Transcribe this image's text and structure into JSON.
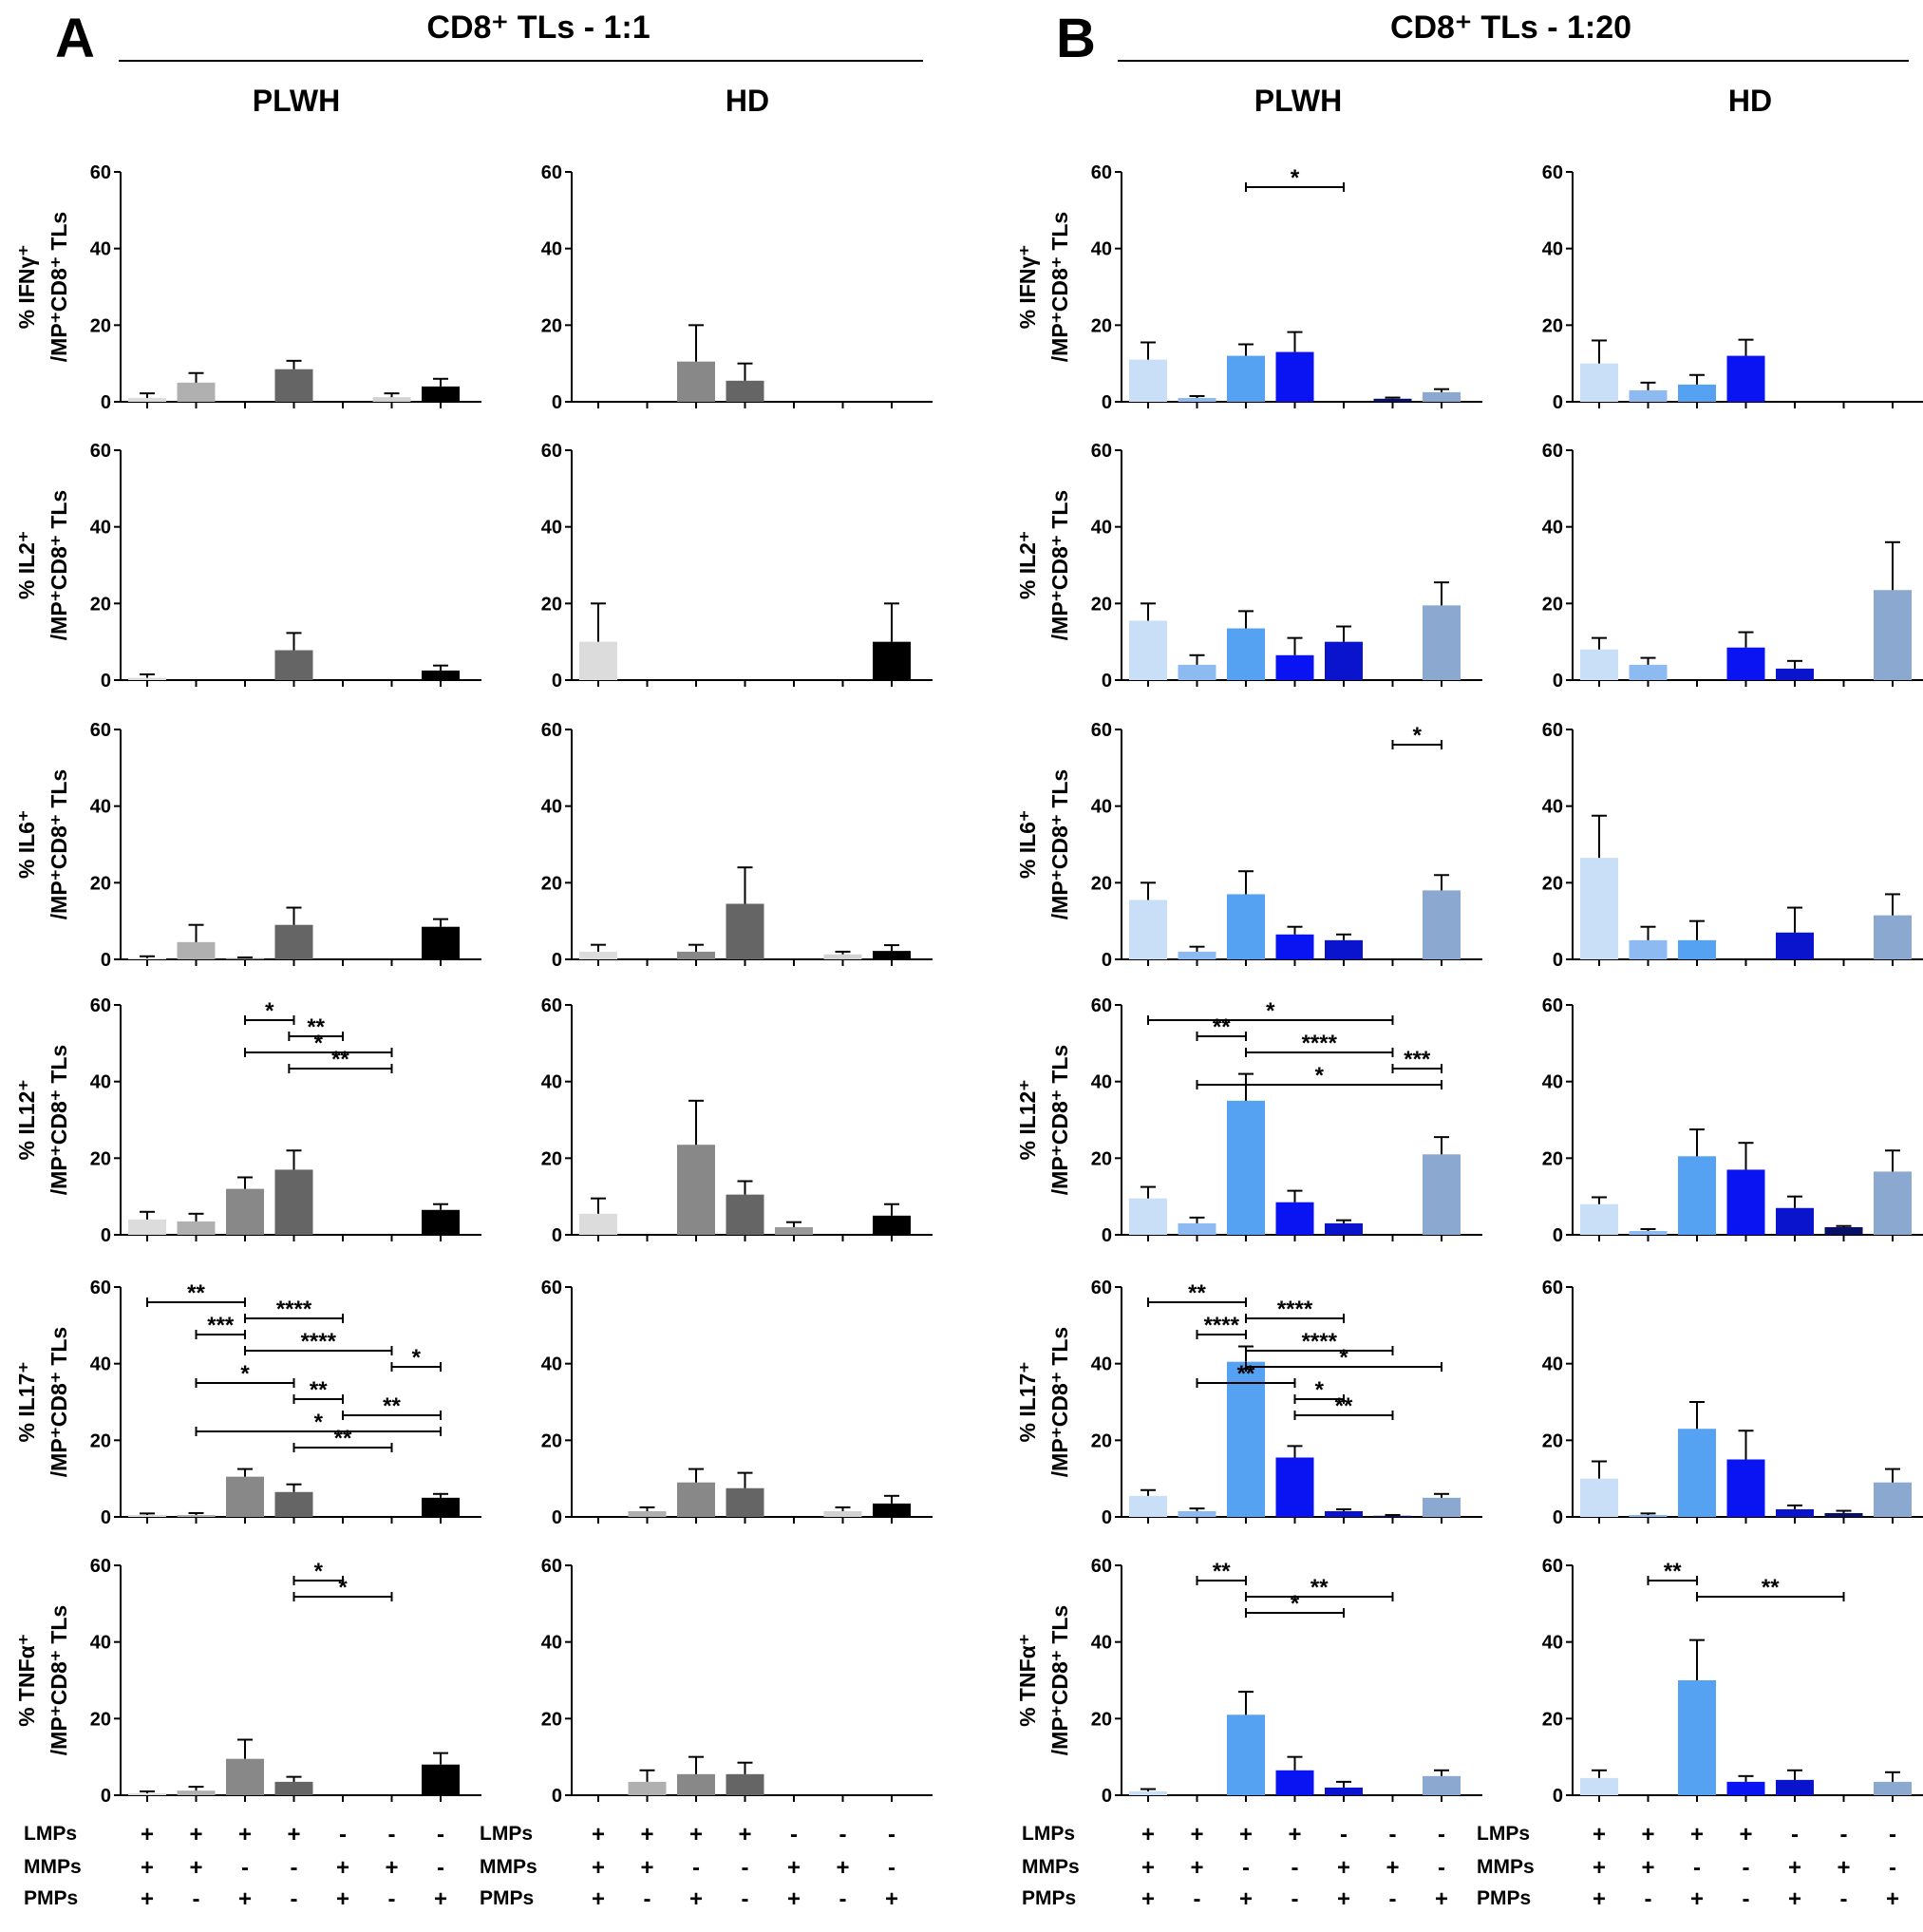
{
  "panels": [
    {
      "letter": "A",
      "title": "CD8⁺ TLs - 1:1"
    },
    {
      "letter": "B",
      "title": "CD8⁺ TLs - 1:20"
    }
  ],
  "groups": [
    "PLWH",
    "HD"
  ],
  "y_axis_labels": [
    {
      "top": "% IFNγ⁺",
      "bottom": "/MP⁺CD8⁺ TLs"
    },
    {
      "top": "% IL2⁺",
      "bottom": "/MP⁺CD8⁺ TLs"
    },
    {
      "top": "% IL6⁺",
      "bottom": "/MP⁺CD8⁺ TLs"
    },
    {
      "top": "% IL12⁺",
      "bottom": "/MP⁺CD8⁺ TLs"
    },
    {
      "top": "% IL17⁺",
      "bottom": "/MP⁺CD8⁺ TLs"
    },
    {
      "top": "% TNFα⁺",
      "bottom": "/MP⁺CD8⁺ TLs"
    }
  ],
  "conditions": {
    "labels": [
      "LMPs",
      "MMPs",
      "PMPs"
    ],
    "LMPs": [
      "+",
      "+",
      "+",
      "+",
      "-",
      "-",
      "-"
    ],
    "MMPs": [
      "+",
      "+",
      "-",
      "-",
      "+",
      "+",
      "-"
    ],
    "PMPs": [
      "+",
      "-",
      "+",
      "-",
      "+",
      "-",
      "+"
    ]
  },
  "colors": {
    "grey": [
      "#dcdcdc",
      "#b0b0b0",
      "#888888",
      "#656565",
      "#999999",
      "#d2d2d2",
      "#000000"
    ],
    "blue": [
      "#c9def7",
      "#8cbaf1",
      "#55a1f2",
      "#0a14f2",
      "#0a14cc",
      "#071066",
      "#8aa8d0"
    ]
  },
  "chart_data": {
    "type": "bar",
    "ylim": [
      0,
      60
    ],
    "yticks": [
      "60",
      "40",
      "20",
      "0"
    ],
    "categories": [
      "1",
      "2",
      "3",
      "4",
      "5",
      "6",
      "7"
    ],
    "rows": [
      {
        "marker": "IFNγ",
        "charts": [
          {
            "panel": "A",
            "group": "PLWH",
            "values": [
              1,
              5,
              0,
              8.5,
              0,
              1.2,
              4
            ],
            "errors": [
              1.2,
              2.5,
              0,
              2.2,
              0,
              1,
              2
            ],
            "sig": []
          },
          {
            "panel": "A",
            "group": "HD",
            "values": [
              0,
              0,
              10.5,
              5.5,
              0,
              0,
              0
            ],
            "errors": [
              0,
              0,
              9.5,
              4.5,
              0,
              0,
              0
            ],
            "sig": []
          },
          {
            "panel": "B",
            "group": "PLWH",
            "values": [
              11,
              1,
              12,
              13,
              0,
              0.8,
              2.5
            ],
            "errors": [
              4.5,
              0.5,
              3,
              5.2,
              0,
              0.3,
              0.8
            ],
            "sig": [
              {
                "from": 3,
                "to": 5,
                "label": "*"
              }
            ]
          },
          {
            "panel": "B",
            "group": "HD",
            "values": [
              10,
              3,
              4.5,
              12,
              0,
              0,
              0
            ],
            "errors": [
              6,
              2,
              2.5,
              4.2,
              0,
              0,
              0
            ],
            "sig": []
          }
        ]
      },
      {
        "marker": "IL2",
        "charts": [
          {
            "panel": "A",
            "group": "PLWH",
            "values": [
              0.6,
              0,
              0,
              7.8,
              0,
              0,
              2.5
            ],
            "errors": [
              0.9,
              0,
              0,
              4.5,
              0,
              0,
              1.3
            ],
            "sig": []
          },
          {
            "panel": "A",
            "group": "HD",
            "values": [
              10,
              0,
              0,
              0,
              0,
              0,
              10
            ],
            "errors": [
              10,
              0,
              0,
              0,
              0,
              0,
              10
            ],
            "sig": []
          },
          {
            "panel": "B",
            "group": "PLWH",
            "values": [
              15.5,
              4,
              13.5,
              6.5,
              10,
              0,
              19.5
            ],
            "errors": [
              4.5,
              2.5,
              4.5,
              4.5,
              4,
              0,
              6
            ],
            "sig": []
          },
          {
            "panel": "B",
            "group": "HD",
            "values": [
              8,
              4,
              0,
              8.5,
              3,
              0,
              23.5
            ],
            "errors": [
              3,
              1.8,
              0,
              4,
              2,
              0,
              12.5
            ],
            "sig": []
          }
        ]
      },
      {
        "marker": "IL6",
        "charts": [
          {
            "panel": "A",
            "group": "PLWH",
            "values": [
              0.3,
              4.5,
              0.3,
              9,
              0,
              0,
              8.5
            ],
            "errors": [
              0.5,
              4.5,
              0.2,
              4.5,
              0,
              0,
              2
            ]
          },
          {
            "panel": "A",
            "group": "HD",
            "values": [
              2,
              0,
              2,
              14.5,
              0,
              1.3,
              2.2
            ],
            "errors": [
              1.8,
              0,
              1.8,
              9.5,
              0,
              0.7,
              1.5
            ]
          },
          {
            "panel": "B",
            "group": "PLWH",
            "values": [
              15.5,
              2,
              17,
              6.5,
              5,
              0,
              18
            ],
            "errors": [
              4.5,
              1.3,
              6,
              2,
              1.5,
              0,
              4
            ],
            "sig": [
              {
                "from": 6,
                "to": 7,
                "label": "*"
              }
            ]
          },
          {
            "panel": "B",
            "group": "HD",
            "values": [
              26.5,
              5,
              5,
              0,
              7,
              0,
              11.5
            ],
            "errors": [
              11,
              3.5,
              5,
              0,
              6.5,
              0,
              5.5
            ]
          }
        ]
      },
      {
        "marker": "IL12",
        "charts": [
          {
            "panel": "A",
            "group": "PLWH",
            "values": [
              4,
              3.5,
              12,
              17,
              0,
              0,
              6.5
            ],
            "errors": [
              2,
              2,
              3,
              5,
              0,
              0,
              1.5
            ],
            "sig": [
              {
                "from": 3,
                "to": 4,
                "label": "*"
              },
              {
                "from": 3.9,
                "to": 5,
                "label": "**"
              },
              {
                "from": 3,
                "to": 6,
                "label": "*"
              },
              {
                "from": 3.9,
                "to": 6,
                "label": "**"
              }
            ]
          },
          {
            "panel": "A",
            "group": "HD",
            "values": [
              5.5,
              0,
              23.5,
              10.5,
              2,
              0,
              5
            ],
            "errors": [
              4,
              0,
              11.5,
              3.5,
              1.3,
              0,
              3
            ]
          },
          {
            "panel": "B",
            "group": "PLWH",
            "values": [
              9.5,
              3,
              35,
              8.5,
              3,
              0,
              21
            ],
            "errors": [
              3,
              1.5,
              7,
              3,
              0.8,
              0,
              4.5
            ],
            "sig": [
              {
                "from": 1,
                "to": 6,
                "label": "*"
              },
              {
                "from": 2,
                "to": 3,
                "label": "**"
              },
              {
                "from": 3,
                "to": 6,
                "label": "****"
              },
              {
                "from": 6,
                "to": 7,
                "label": "***"
              },
              {
                "from": 2,
                "to": 7,
                "label": "*"
              }
            ]
          },
          {
            "panel": "B",
            "group": "HD",
            "values": [
              8,
              1,
              20.5,
              17,
              7,
              2,
              16.5
            ],
            "errors": [
              1.8,
              0.5,
              7,
              7,
              3,
              0.3,
              5.5
            ]
          }
        ]
      },
      {
        "marker": "IL17",
        "charts": [
          {
            "panel": "A",
            "group": "PLWH",
            "values": [
              0.5,
              0.5,
              10.5,
              6.5,
              0,
              0,
              5
            ],
            "errors": [
              0.4,
              0.5,
              2,
              2,
              0,
              0,
              1
            ],
            "sig": [
              {
                "from": 1,
                "to": 3,
                "label": "**"
              },
              {
                "from": 3,
                "to": 5,
                "label": "****"
              },
              {
                "from": 2,
                "to": 3,
                "label": "***"
              },
              {
                "from": 3,
                "to": 6,
                "label": "****"
              },
              {
                "from": 6,
                "to": 7,
                "label": "*"
              },
              {
                "from": 2,
                "to": 4,
                "label": "*"
              },
              {
                "from": 4,
                "to": 5,
                "label": "**"
              },
              {
                "from": 5,
                "to": 7,
                "label": "**"
              },
              {
                "from": 2,
                "to": 7,
                "label": "*"
              },
              {
                "from": 4,
                "to": 6,
                "label": "**"
              }
            ]
          },
          {
            "panel": "A",
            "group": "HD",
            "values": [
              0,
              1.5,
              9,
              7.5,
              0,
              1.5,
              3.5
            ],
            "errors": [
              0,
              1,
              3.5,
              4,
              0,
              1,
              2
            ]
          },
          {
            "panel": "B",
            "group": "PLWH",
            "values": [
              5.5,
              1.5,
              40.5,
              15.5,
              1.5,
              0.3,
              5
            ],
            "errors": [
              1.5,
              0.7,
              4,
              3,
              0.5,
              0.2,
              1
            ],
            "sig": [
              {
                "from": 1,
                "to": 3,
                "label": "**"
              },
              {
                "from": 3,
                "to": 5,
                "label": "****"
              },
              {
                "from": 2,
                "to": 3,
                "label": "****"
              },
              {
                "from": 3,
                "to": 6,
                "label": "****"
              },
              {
                "from": 3,
                "to": 7,
                "label": "*"
              },
              {
                "from": 2,
                "to": 4,
                "label": "**"
              },
              {
                "from": 4,
                "to": 5,
                "label": "*"
              },
              {
                "from": 4,
                "to": 6,
                "label": "**"
              }
            ]
          },
          {
            "panel": "B",
            "group": "HD",
            "values": [
              10,
              0.5,
              23,
              15,
              2,
              1,
              9
            ],
            "errors": [
              4.5,
              0.4,
              7,
              7.5,
              1,
              0.6,
              3.5
            ]
          }
        ]
      },
      {
        "marker": "TNFα",
        "charts": [
          {
            "panel": "A",
            "group": "PLWH",
            "values": [
              0.5,
              1.2,
              9.5,
              3.5,
              0,
              0,
              8
            ],
            "errors": [
              0.5,
              1,
              5,
              1.3,
              0,
              0,
              3
            ],
            "sig": [
              {
                "from": 4,
                "to": 5,
                "label": "*"
              },
              {
                "from": 4,
                "to": 6,
                "label": "*"
              }
            ]
          },
          {
            "panel": "A",
            "group": "HD",
            "values": [
              0,
              3.5,
              5.5,
              5.5,
              0,
              0,
              0
            ],
            "errors": [
              0,
              3,
              4.5,
              3,
              0,
              0,
              0
            ]
          },
          {
            "panel": "B",
            "group": "PLWH",
            "values": [
              1,
              0,
              21,
              6.5,
              2,
              0,
              5
            ],
            "errors": [
              0.6,
              0,
              6,
              3.5,
              1.5,
              0,
              1.5
            ],
            "sig": [
              {
                "from": 2,
                "to": 3,
                "label": "**"
              },
              {
                "from": 3,
                "to": 6,
                "label": "**"
              },
              {
                "from": 3,
                "to": 5,
                "label": "*"
              }
            ]
          },
          {
            "panel": "B",
            "group": "HD",
            "values": [
              4.5,
              0,
              30,
              3.5,
              4,
              0,
              3.5
            ],
            "errors": [
              2,
              0,
              10.5,
              1.5,
              2.5,
              0,
              2.5
            ],
            "sig": [
              {
                "from": 2,
                "to": 3,
                "label": "**"
              },
              {
                "from": 3,
                "to": 6,
                "label": "**"
              }
            ]
          }
        ]
      }
    ]
  }
}
